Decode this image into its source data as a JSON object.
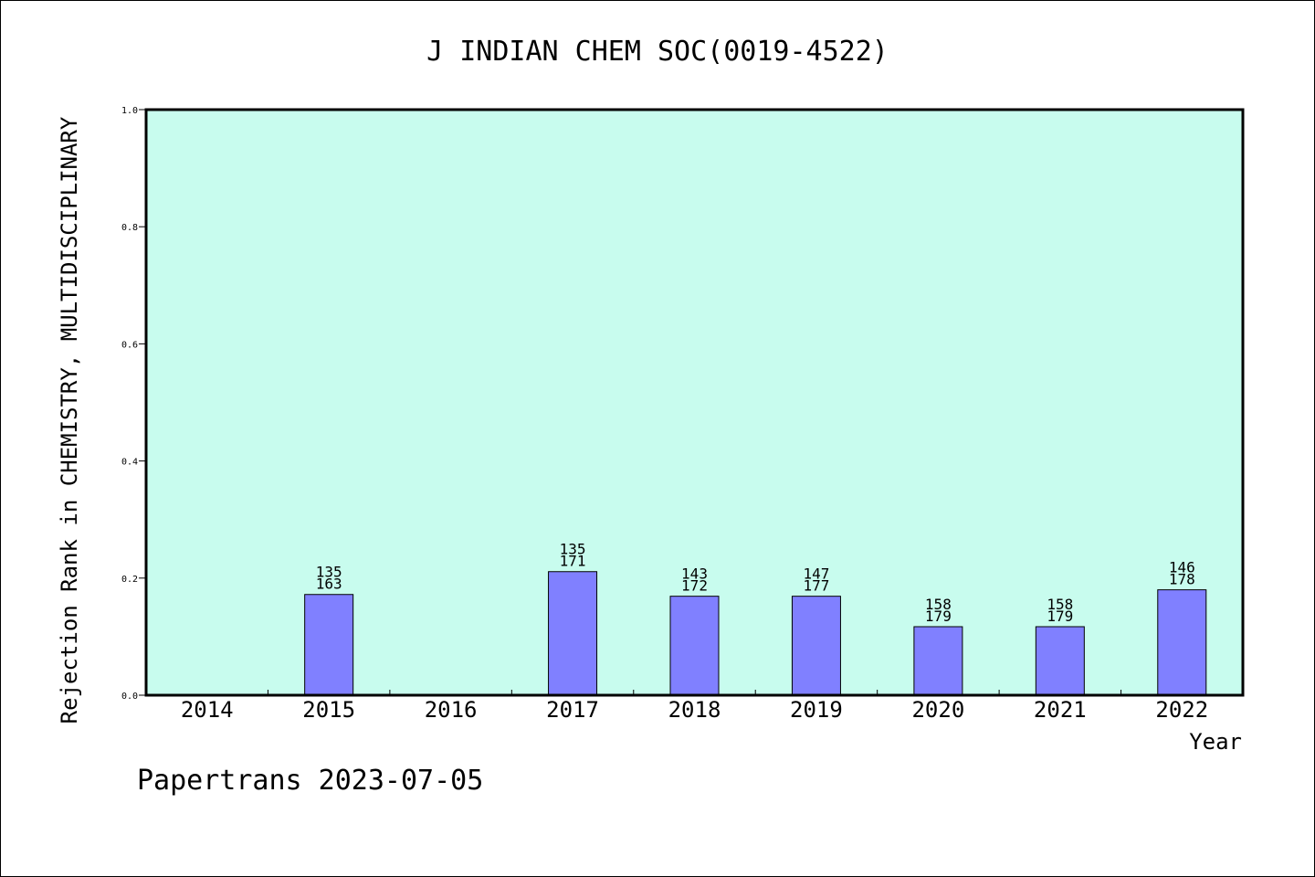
{
  "chart_data": {
    "type": "bar",
    "title": "J INDIAN CHEM SOC(0019-4522)",
    "xlabel": "Year",
    "ylabel": "Rejection Rank in CHEMISTRY, MULTIDISCIPLINARY",
    "categories": [
      "2014",
      "2015",
      "2016",
      "2017",
      "2018",
      "2019",
      "2020",
      "2021",
      "2022"
    ],
    "values": [
      null,
      0.172,
      null,
      0.211,
      0.169,
      0.169,
      0.117,
      0.117,
      0.18
    ],
    "bar_labels": [
      null,
      [
        "135",
        "163"
      ],
      null,
      [
        "135",
        "171"
      ],
      [
        "143",
        "172"
      ],
      [
        "147",
        "177"
      ],
      [
        "158",
        "179"
      ],
      [
        "158",
        "179"
      ],
      [
        "146",
        "178"
      ]
    ],
    "ylim": [
      0,
      1.0
    ],
    "yticks": [
      "0.0",
      "0.2",
      "0.4",
      "0.6",
      "0.8",
      "1.0"
    ],
    "grid": false,
    "colors": {
      "plot_background": "#c8fcee",
      "bar_fill": "#8080ff",
      "bar_stroke": "#000000"
    }
  },
  "footer": {
    "text": "Papertrans 2023-07-05"
  }
}
